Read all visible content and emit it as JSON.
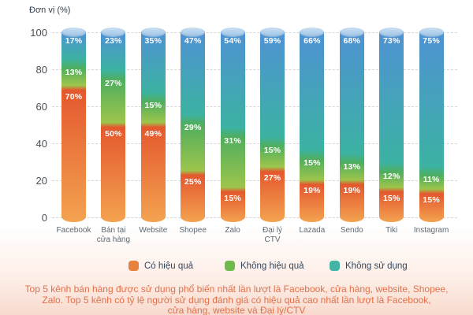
{
  "chart_data": {
    "type": "bar",
    "stacked": true,
    "title": "Đơn vị (%)",
    "categories": [
      "Facebook",
      "Bán tại\ncửa hàng",
      "Website",
      "Shopee",
      "Zalo",
      "Đại lý\nCTV",
      "Lazada",
      "Sendo",
      "Tiki",
      "Instagram"
    ],
    "series": [
      {
        "name": "Có hiệu quả",
        "color": "#e8813c",
        "values": [
          70,
          50,
          49,
          25,
          15,
          27,
          19,
          19,
          15,
          15
        ]
      },
      {
        "name": "Không hiệu quả",
        "color": "#6eba4e",
        "values": [
          13,
          27,
          15,
          29,
          31,
          15,
          15,
          13,
          12,
          11
        ]
      },
      {
        "name": "Không sử dụng",
        "color": "#44b4a4",
        "values": [
          17,
          23,
          35,
          47,
          54,
          59,
          66,
          68,
          73,
          75
        ]
      }
    ],
    "value_suffix": "%",
    "ylabel": "Đơn vị (%)",
    "ylim": [
      0,
      100
    ],
    "yticks": [
      0,
      20,
      40,
      60,
      80,
      100
    ],
    "grid": true,
    "legend_position": "bottom"
  },
  "colors": {
    "segment_gradients": [
      [
        "#e4582e",
        "#f3a350"
      ],
      [
        "#4fae5e",
        "#9dc54c"
      ],
      [
        "#4e92d4",
        "#3cb2a2"
      ]
    ],
    "cylinder_top": "#a9cce9",
    "caption_text": "#e1714a",
    "background_bottom": "#f8dace",
    "gridline": "#d4d6d8"
  },
  "legend": {
    "items": [
      {
        "label": "Có hiệu quả",
        "color": "#e8813c"
      },
      {
        "label": "Không hiệu quả",
        "color": "#6eba4e"
      },
      {
        "label": "Không sử dụng",
        "color": "#44b4a4"
      }
    ]
  },
  "caption": {
    "lines": [
      "Top 5 kênh bán hàng được sử dụng phổ biến nhất lần lượt là Facebook, cửa hàng, website, Shopee,",
      "Zalo. Top 5 kênh có tỷ lệ người sử dụng đánh giá có hiệu quả cao nhất lần lượt là Facebook,",
      "cửa hàng, website và Đại lý/CTV"
    ]
  }
}
